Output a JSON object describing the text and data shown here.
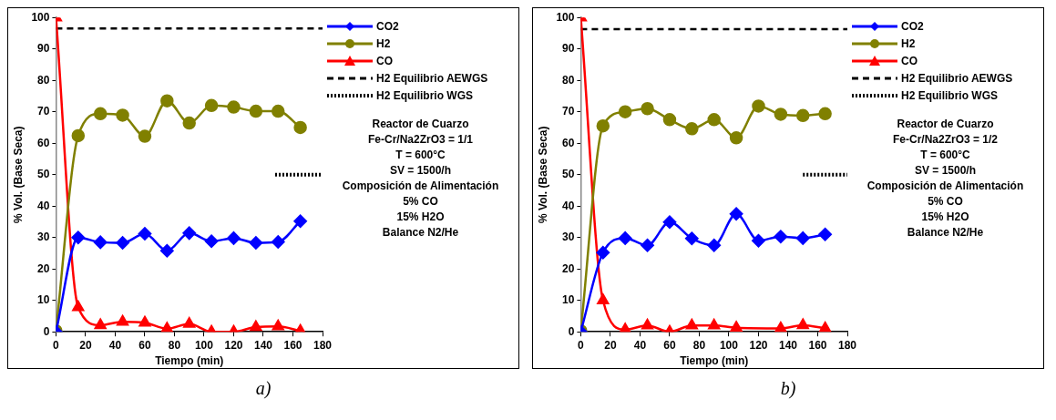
{
  "chart_data": [
    {
      "type": "line",
      "title": "a)",
      "xlabel": "Tiempo (min)",
      "ylabel": "% Vol. (Base Seca)",
      "x": [
        0,
        15,
        30,
        45,
        60,
        75,
        90,
        105,
        120,
        135,
        150,
        165
      ],
      "xlim": [
        0,
        180
      ],
      "xticks": [
        0,
        20,
        40,
        60,
        80,
        100,
        120,
        140,
        160,
        180
      ],
      "ylim": [
        0,
        100
      ],
      "yticks": [
        0,
        10,
        20,
        30,
        40,
        50,
        60,
        70,
        80,
        90,
        100
      ],
      "grid": false,
      "legend": "right",
      "annotations": [
        "Reactor de Cuarzo",
        "Fe-Cr/Na2ZrO3 = 1/1",
        "T = 600°C",
        "SV = 1500/h",
        "Composición de Alimentación",
        "5% CO",
        "15% H2O",
        "Balance N2/He"
      ],
      "series": [
        {
          "name": "CO2",
          "color": "#0000ff",
          "marker": "diamond",
          "line_style": "solid",
          "values": [
            0,
            30,
            28.5,
            28.3,
            31.2,
            25.8,
            31.4,
            28.8,
            29.8,
            28.3,
            28.6,
            35.2
          ]
        },
        {
          "name": "H2",
          "color": "#808000",
          "marker": "circle",
          "line_style": "solid",
          "values": [
            0.3,
            62.4,
            69.4,
            68.9,
            62.2,
            73.5,
            66.4,
            72,
            71.5,
            70.2,
            70.2,
            65
          ]
        },
        {
          "name": "CO",
          "color": "#ff0000",
          "marker": "triangle",
          "line_style": "solid",
          "values": [
            100,
            7.8,
            2.1,
            3.2,
            2.9,
            1,
            2.5,
            0,
            0,
            1.5,
            1.7,
            0.3
          ]
        },
        {
          "name": "H2 Equilibrio AEWGS",
          "color": "#000000",
          "marker": "none",
          "line_style": "dashed",
          "x": [
            0,
            180
          ],
          "values": [
            96.5,
            96.5
          ]
        },
        {
          "name": "H2 Equilibrio WGS",
          "color": "#000000",
          "marker": "none",
          "line_style": "dotted",
          "x": [
            148,
            180
          ],
          "values": [
            50,
            50
          ]
        }
      ]
    },
    {
      "type": "line",
      "title": "b)",
      "xlabel": "Tiempo (min)",
      "ylabel": "% Vol. (Base Seca)",
      "x": [
        0,
        15,
        30,
        45,
        60,
        75,
        90,
        105,
        120,
        135,
        150,
        165
      ],
      "xlim": [
        0,
        180
      ],
      "xticks": [
        0,
        20,
        40,
        60,
        80,
        100,
        120,
        140,
        160,
        180
      ],
      "ylim": [
        0,
        100
      ],
      "yticks": [
        0,
        10,
        20,
        30,
        40,
        50,
        60,
        70,
        80,
        90,
        100
      ],
      "grid": false,
      "legend": "right",
      "annotations": [
        "Reactor de Cuarzo",
        "Fe-Cr/Na2ZrO3 = 1/2",
        "T = 600°C",
        "SV = 1500/h",
        "Composición de Alimentación",
        "5% CO",
        "15% H2O",
        "Balance N2/He"
      ],
      "series": [
        {
          "name": "CO2",
          "color": "#0000ff",
          "marker": "diamond",
          "line_style": "solid",
          "values": [
            0,
            25.2,
            29.8,
            27.5,
            34.9,
            29.7,
            27.5,
            37.5,
            29,
            30.3,
            29.8,
            31
          ]
        },
        {
          "name": "H2",
          "color": "#808000",
          "marker": "circle",
          "line_style": "solid",
          "values": [
            0.3,
            65.5,
            70,
            71,
            67.5,
            64.6,
            67.5,
            61.7,
            71.8,
            69.2,
            68.8,
            69.4
          ]
        },
        {
          "name": "CO",
          "color": "#ff0000",
          "marker": "triangle",
          "line_style": "solid",
          "x": [
            0,
            15,
            30,
            45,
            60,
            75,
            90,
            105,
            135,
            150,
            165
          ],
          "values": [
            100,
            10,
            0.7,
            2,
            0,
            2,
            2,
            1.3,
            1.1,
            2.1,
            1.1
          ]
        },
        {
          "name": "H2 Equilibrio AEWGS",
          "color": "#000000",
          "marker": "none",
          "line_style": "dashed",
          "x": [
            0,
            180
          ],
          "values": [
            96.3,
            96.3
          ]
        },
        {
          "name": "H2 Equilibrio WGS",
          "color": "#000000",
          "marker": "none",
          "line_style": "dotted",
          "x": [
            150,
            180
          ],
          "values": [
            50,
            50
          ]
        }
      ]
    }
  ]
}
